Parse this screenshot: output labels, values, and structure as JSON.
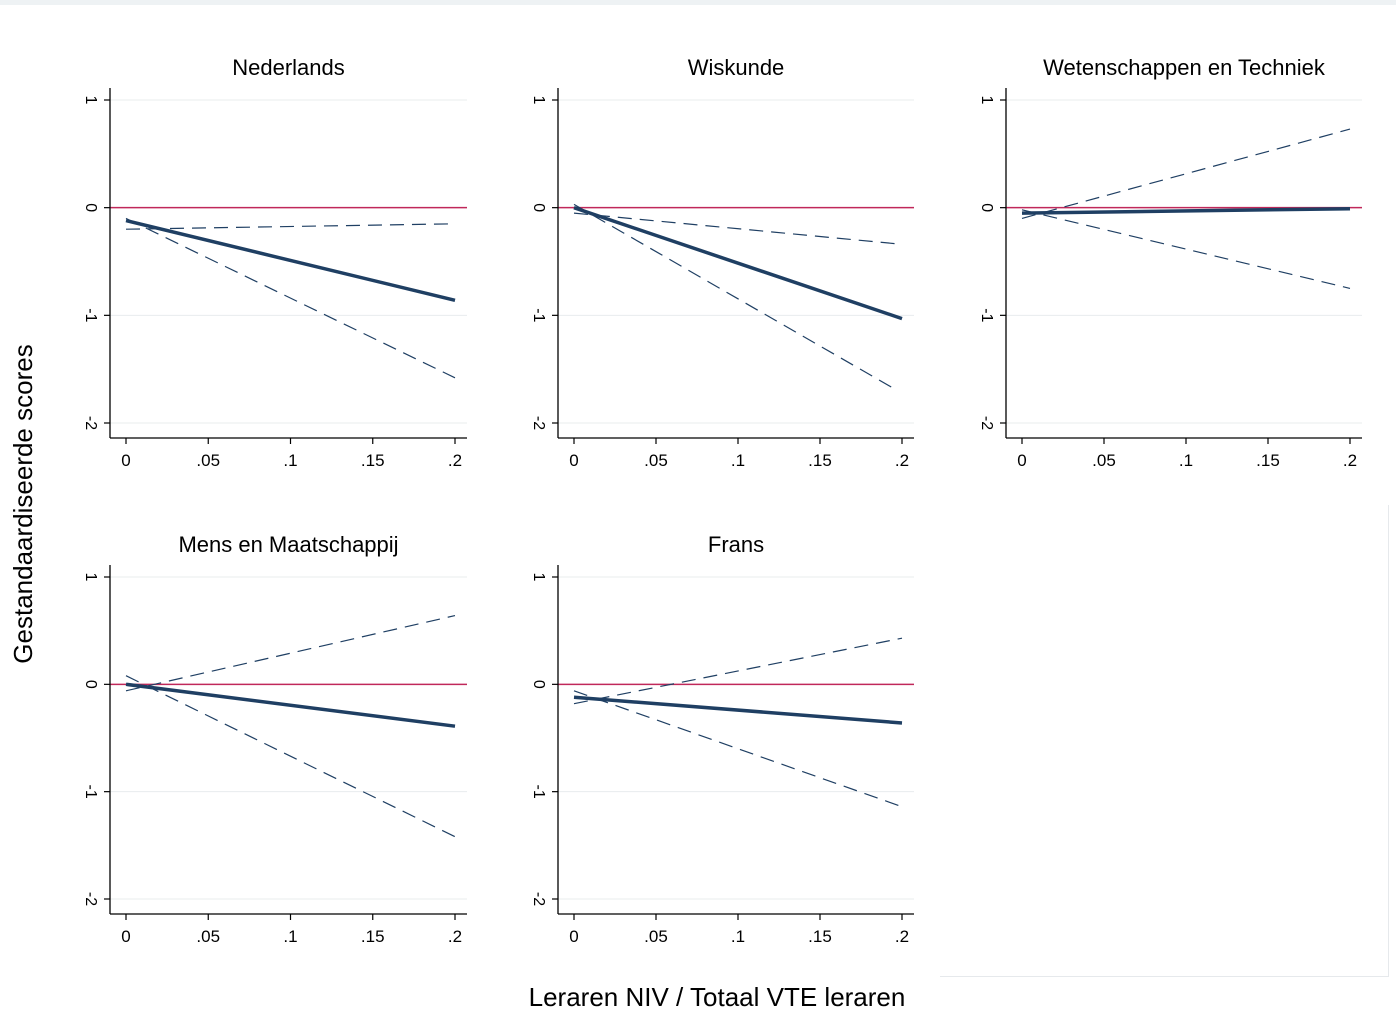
{
  "figure": {
    "ylabel": "Gestandaardiseerde scores",
    "xlabel": "Leraren NIV / Totaal VTE leraren"
  },
  "style": {
    "estimate_color": "#1f3f63",
    "ci_color": "#1f3f63",
    "reference_color": "#c0285a",
    "axis_color": "#000000",
    "grid_color": "#e8ecee"
  },
  "chart_data": [
    {
      "type": "line",
      "title": "Nederlands",
      "xlim": [
        0,
        0.2
      ],
      "ylim": [
        -0.2,
        0.1
      ],
      "x_ticks": [
        0,
        0.05,
        0.1,
        0.15,
        0.2
      ],
      "x_tick_labels": [
        "0",
        ".05",
        ".1",
        ".15",
        ".2"
      ],
      "y_ticks": [
        0.1,
        0,
        -0.1,
        -0.2
      ],
      "y_tick_labels": [
        "1",
        "0",
        "-1",
        "-2"
      ],
      "reference_line": 0,
      "grid": true,
      "series": [
        {
          "role": "estimate",
          "x": [
            0,
            0.2
          ],
          "y": [
            -0.012,
            -0.086
          ]
        },
        {
          "role": "ci-upper",
          "x": [
            0,
            0.2
          ],
          "y": [
            -0.02,
            -0.015
          ]
        },
        {
          "role": "ci-lower",
          "x": [
            0,
            0.2
          ],
          "y": [
            -0.01,
            -0.158
          ]
        }
      ]
    },
    {
      "type": "line",
      "title": "Wiskunde",
      "xlim": [
        0,
        0.2
      ],
      "ylim": [
        -0.2,
        0.1
      ],
      "x_ticks": [
        0,
        0.05,
        0.1,
        0.15,
        0.2
      ],
      "x_tick_labels": [
        "0",
        ".05",
        ".1",
        ".15",
        ".2"
      ],
      "y_ticks": [
        0.1,
        0,
        -0.1,
        -0.2
      ],
      "y_tick_labels": [
        "1",
        "0",
        "-1",
        "-2"
      ],
      "reference_line": 0,
      "grid": true,
      "series": [
        {
          "role": "estimate",
          "x": [
            0,
            0.2
          ],
          "y": [
            0.0,
            -0.103
          ]
        },
        {
          "role": "ci-upper",
          "x": [
            0,
            0.2
          ],
          "y": [
            -0.005,
            -0.034
          ]
        },
        {
          "role": "ci-lower",
          "x": [
            0,
            0.195
          ],
          "y": [
            0.003,
            -0.168
          ]
        }
      ]
    },
    {
      "type": "line",
      "title": "Wetenschappen en Techniek",
      "xlim": [
        0,
        0.2
      ],
      "ylim": [
        -0.2,
        0.1
      ],
      "x_ticks": [
        0,
        0.05,
        0.1,
        0.15,
        0.2
      ],
      "x_tick_labels": [
        "0",
        ".05",
        ".1",
        ".15",
        ".2"
      ],
      "y_ticks": [
        0.1,
        0,
        -0.1,
        -0.2
      ],
      "y_tick_labels": [
        "1",
        "0",
        "-1",
        "-2"
      ],
      "reference_line": 0,
      "grid": true,
      "series": [
        {
          "role": "estimate",
          "x": [
            0,
            0.2
          ],
          "y": [
            -0.005,
            -0.001
          ]
        },
        {
          "role": "ci-upper",
          "x": [
            0,
            0.2
          ],
          "y": [
            -0.01,
            0.073
          ]
        },
        {
          "role": "ci-lower",
          "x": [
            0,
            0.2
          ],
          "y": [
            -0.002,
            -0.075
          ]
        }
      ]
    },
    {
      "type": "line",
      "title": "Mens en Maatschappij",
      "xlim": [
        0,
        0.2
      ],
      "ylim": [
        -0.2,
        0.1
      ],
      "x_ticks": [
        0,
        0.05,
        0.1,
        0.15,
        0.2
      ],
      "x_tick_labels": [
        "0",
        ".05",
        ".1",
        ".15",
        ".2"
      ],
      "y_ticks": [
        0.1,
        0,
        -0.1,
        -0.2
      ],
      "y_tick_labels": [
        "1",
        "0",
        "-1",
        "-2"
      ],
      "reference_line": 0,
      "grid": true,
      "series": [
        {
          "role": "estimate",
          "x": [
            0,
            0.2
          ],
          "y": [
            0.0,
            -0.039
          ]
        },
        {
          "role": "ci-upper",
          "x": [
            0,
            0.2
          ],
          "y": [
            -0.006,
            0.064
          ]
        },
        {
          "role": "ci-lower",
          "x": [
            0,
            0.2
          ],
          "y": [
            0.008,
            -0.142
          ]
        }
      ]
    },
    {
      "type": "line",
      "title": "Frans",
      "xlim": [
        0,
        0.2
      ],
      "ylim": [
        -0.2,
        0.1
      ],
      "x_ticks": [
        0,
        0.05,
        0.1,
        0.15,
        0.2
      ],
      "x_tick_labels": [
        "0",
        ".05",
        ".1",
        ".15",
        ".2"
      ],
      "y_ticks": [
        0.1,
        0,
        -0.1,
        -0.2
      ],
      "y_tick_labels": [
        "1",
        "0",
        "-1",
        "-2"
      ],
      "reference_line": 0,
      "grid": true,
      "series": [
        {
          "role": "estimate",
          "x": [
            0,
            0.2
          ],
          "y": [
            -0.012,
            -0.036
          ]
        },
        {
          "role": "ci-upper",
          "x": [
            0,
            0.2
          ],
          "y": [
            -0.018,
            0.043
          ]
        },
        {
          "role": "ci-lower",
          "x": [
            0,
            0.2
          ],
          "y": [
            -0.006,
            -0.114
          ]
        }
      ]
    }
  ]
}
